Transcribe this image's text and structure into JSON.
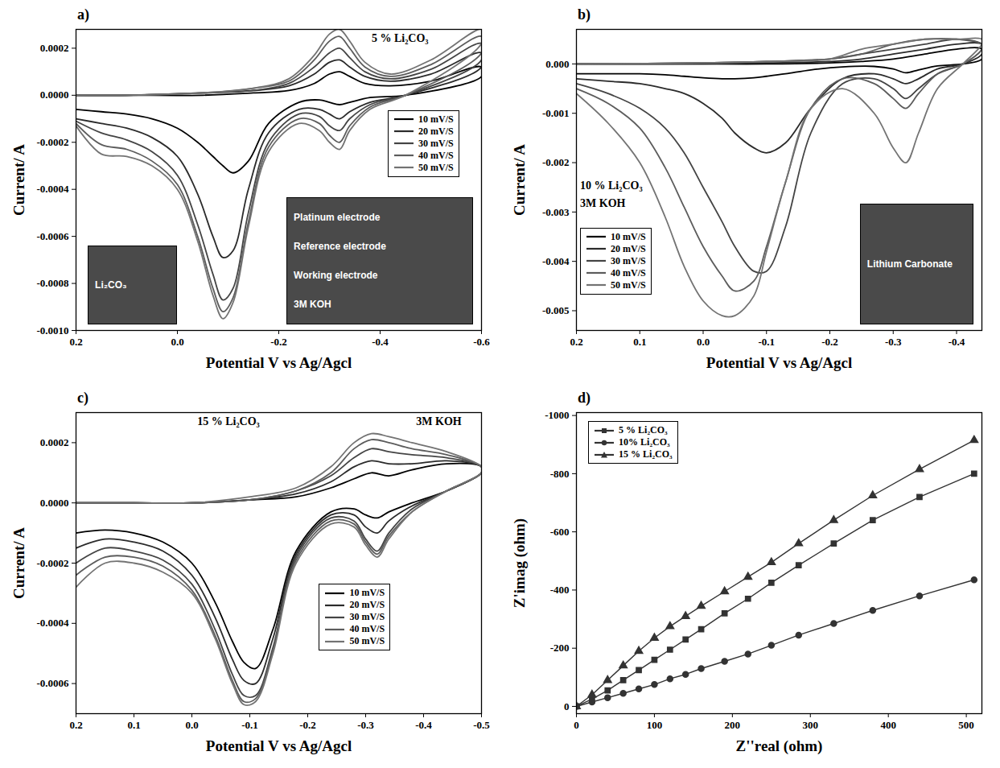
{
  "chart_data": [
    {
      "panel": "a)",
      "type": "line",
      "title": "5 % Li₂CO₃",
      "annotations": [
        "Li₂CO₃",
        "Platinum electrode",
        "Reference electrode",
        "Working electrode",
        "3M KOH"
      ],
      "x_label": "Potential V vs Ag/Agcl",
      "y_label": "Current/ A",
      "xlim": [
        0.2,
        -0.6
      ],
      "xticks": [
        0.2,
        {
          "value": 0,
          "label": "0.0"
        },
        -0.2,
        -0.4,
        -0.6
      ],
      "ylim": [
        -0.001,
        0.00028
      ],
      "yticks": [
        0.0002,
        {
          "value": 0,
          "label": "0.0000"
        },
        -0.0002,
        -0.0004,
        -0.0006,
        -0.0008,
        {
          "value": -0.001,
          "label": "-0.0010"
        }
      ],
      "legend": "right",
      "x": [
        0.2,
        0.15,
        0.1,
        0.05,
        0,
        -0.04,
        -0.07,
        -0.09,
        -0.11,
        -0.14,
        -0.18,
        -0.24,
        -0.28,
        -0.3,
        -0.32,
        -0.34,
        -0.38,
        -0.45,
        -0.6,
        -0.6,
        -0.5,
        -0.42,
        -0.37,
        -0.34,
        -0.32,
        -0.3,
        -0.27,
        -0.22,
        -0.15,
        -0.05,
        0.1,
        0.2
      ],
      "series": [
        {
          "name": "10 mV/S",
          "color": "#000000",
          "values": [
            -6e-05,
            -7e-05,
            -8e-05,
            -0.0001,
            -0.00014,
            -0.0002,
            -0.00026,
            -0.0003,
            -0.00033,
            -0.00028,
            -0.00012,
            -3e-05,
            -2e-05,
            -3e-05,
            -4e-05,
            -3e-05,
            -1e-05,
            0,
            8e-05,
            0.00012,
            6e-05,
            4e-05,
            5e-05,
            8e-05,
            0.0001,
            9e-05,
            5e-05,
            2e-05,
            1e-05,
            0,
            0,
            0
          ]
        },
        {
          "name": "20 mV/S",
          "color": "#2b2b2b",
          "values": [
            -0.0001,
            -0.00012,
            -0.00014,
            -0.00018,
            -0.00026,
            -0.00042,
            -0.0006,
            -0.00069,
            -0.00066,
            -0.0004,
            -0.00016,
            -6e-05,
            -6e-05,
            -8e-05,
            -0.0001,
            -7e-05,
            -3e-05,
            0,
            0.00012,
            0.00018,
            9e-05,
            6e-05,
            8e-05,
            0.00012,
            0.00015,
            0.00014,
            9e-05,
            4e-05,
            2e-05,
            1e-05,
            0,
            0
          ]
        },
        {
          "name": "30 mV/S",
          "color": "#444444",
          "values": [
            -0.00011,
            -0.00016,
            -0.00019,
            -0.00024,
            -0.00034,
            -0.00055,
            -0.00076,
            -0.00087,
            -0.00082,
            -0.0005,
            -0.0002,
            -8e-05,
            -9e-05,
            -0.00013,
            -0.00015,
            -0.0001,
            -4e-05,
            0,
            0.00015,
            0.00022,
            0.00011,
            7e-05,
            0.0001,
            0.00016,
            0.0002,
            0.00018,
            0.00012,
            5e-05,
            2e-05,
            1e-05,
            0,
            0
          ]
        },
        {
          "name": "40 mV/S",
          "color": "#5c5c5c",
          "values": [
            -0.00012,
            -0.00021,
            -0.00023,
            -0.00028,
            -0.00038,
            -0.0006,
            -0.00082,
            -0.00092,
            -0.00086,
            -0.00054,
            -0.00022,
            -0.0001,
            -0.00012,
            -0.00017,
            -0.0002,
            -0.00013,
            -5e-05,
            0,
            0.00018,
            0.00025,
            0.00013,
            8e-05,
            0.00012,
            0.0002,
            0.00025,
            0.00023,
            0.00015,
            6e-05,
            3e-05,
            1e-05,
            0,
            0
          ]
        },
        {
          "name": "50 mV/S",
          "color": "#737373",
          "values": [
            -0.00013,
            -0.00025,
            -0.00026,
            -0.0003,
            -0.0004,
            -0.00062,
            -0.00085,
            -0.00095,
            -0.00088,
            -0.00056,
            -0.00024,
            -0.00012,
            -0.00015,
            -0.0002,
            -0.00023,
            -0.00015,
            -6e-05,
            0,
            0.00022,
            0.00028,
            0.00015,
            9e-05,
            0.00014,
            0.00023,
            0.00028,
            0.00026,
            0.00017,
            7e-05,
            3e-05,
            1e-05,
            0,
            0
          ]
        }
      ]
    },
    {
      "panel": "b)",
      "type": "line",
      "title": "10 % Li₂CO₃",
      "annotations": [
        "3M KOH",
        "Lithium Carbonate"
      ],
      "x_label": "Potential V vs Ag/Agcl",
      "y_label": "Current/ A",
      "xlim": [
        0.2,
        -0.44
      ],
      "xticks": [
        0.2,
        0.1,
        {
          "value": 0,
          "label": "0.0"
        },
        -0.1,
        -0.2,
        -0.3,
        -0.4
      ],
      "ylim": [
        -0.0054,
        0.0007
      ],
      "yticks": [
        {
          "value": 0,
          "label": "0.000"
        },
        -0.001,
        -0.002,
        -0.003,
        -0.004,
        -0.005
      ],
      "legend": "lower left",
      "x": [
        0.2,
        0.15,
        0.1,
        0.06,
        0.03,
        0,
        -0.03,
        -0.05,
        -0.08,
        -0.1,
        -0.13,
        -0.17,
        -0.22,
        -0.27,
        -0.3,
        -0.32,
        -0.34,
        -0.37,
        -0.41,
        -0.44,
        -0.44,
        -0.4,
        -0.35,
        -0.3,
        -0.25,
        -0.2,
        -0.1,
        0,
        0.2
      ],
      "series": [
        {
          "name": "10 mV/S",
          "color": "#000000",
          "values": [
            -0.0002,
            -0.0002,
            -0.0002,
            -0.00022,
            -0.00025,
            -0.00028,
            -0.0003,
            -0.0003,
            -0.00028,
            -0.00025,
            -0.0002,
            -0.00012,
            -6e-05,
            -5e-05,
            -0.0001,
            -0.00018,
            -0.00012,
            -4e-05,
            0,
            0.0001,
            0.0003,
            0.0003,
            0.0002,
            0.0001,
            5e-05,
            2e-05,
            0,
            0,
            0
          ]
        },
        {
          "name": "20 mV/S",
          "color": "#2b2b2b",
          "values": [
            -0.0003,
            -0.00035,
            -0.0004,
            -0.0005,
            -0.0006,
            -0.0008,
            -0.0011,
            -0.0014,
            -0.0017,
            -0.0018,
            -0.0016,
            -0.0009,
            -0.0003,
            -0.0002,
            -0.0003,
            -0.0004,
            -0.0003,
            -0.0001,
            0,
            0.0002,
            0.0004,
            0.0004,
            0.0003,
            0.0002,
            0.0001,
            5e-05,
            2e-05,
            0,
            0
          ]
        },
        {
          "name": "30 mV/S",
          "color": "#444444",
          "values": [
            -0.0004,
            -0.0006,
            -0.0009,
            -0.0013,
            -0.0018,
            -0.0025,
            -0.0032,
            -0.0037,
            -0.0042,
            -0.0042,
            -0.0033,
            -0.0014,
            -0.0004,
            -0.0003,
            -0.0005,
            -0.0007,
            -0.0005,
            -0.0002,
            0,
            0.0003,
            0.0004,
            0.0005,
            0.0004,
            0.0003,
            0.0002,
            0.0001,
            5e-05,
            2e-05,
            0
          ]
        },
        {
          "name": "40 mV/S",
          "color": "#5c5c5c",
          "values": [
            -0.0005,
            -0.0008,
            -0.0013,
            -0.0021,
            -0.0029,
            -0.0037,
            -0.0043,
            -0.0046,
            -0.0044,
            -0.0037,
            -0.0024,
            -0.0009,
            -0.0003,
            -0.0004,
            -0.0007,
            -0.0009,
            -0.0006,
            -0.0002,
            0,
            0.0003,
            0.0004,
            0.0005,
            0.0005,
            0.0004,
            0.0002,
            0.0001,
            5e-05,
            2e-05,
            0
          ]
        },
        {
          "name": "50 mV/S",
          "color": "#737373",
          "values": [
            -0.0006,
            -0.0012,
            -0.002,
            -0.0031,
            -0.0041,
            -0.0048,
            -0.0051,
            -0.0051,
            -0.0047,
            -0.0038,
            -0.0024,
            -0.0009,
            -0.0005,
            -0.001,
            -0.0017,
            -0.002,
            -0.0014,
            -0.0005,
            0,
            0.0004,
            0.0005,
            0.0005,
            0.0005,
            0.0004,
            0.0003,
            0.0001,
            5e-05,
            2e-05,
            0
          ]
        }
      ]
    },
    {
      "panel": "c)",
      "type": "line",
      "title": "15 % Li₂CO₃",
      "annotations": [
        "3M KOH"
      ],
      "x_label": "Potential V vs Ag/Agcl",
      "y_label": "Current/ A",
      "xlim": [
        0.2,
        -0.5
      ],
      "xticks": [
        0.2,
        0.1,
        {
          "value": 0,
          "label": "0.0"
        },
        -0.1,
        -0.2,
        -0.3,
        -0.4,
        -0.5
      ],
      "ylim": [
        -0.0007,
        0.0003
      ],
      "yticks": [
        0.0002,
        {
          "value": 0,
          "label": "0.0000"
        },
        -0.0002,
        -0.0004,
        -0.0006
      ],
      "legend": "lower right",
      "x": [
        0.2,
        0.15,
        0.1,
        0.05,
        0,
        -0.04,
        -0.07,
        -0.09,
        -0.11,
        -0.14,
        -0.18,
        -0.24,
        -0.28,
        -0.3,
        -0.32,
        -0.34,
        -0.38,
        -0.44,
        -0.5,
        -0.5,
        -0.44,
        -0.38,
        -0.34,
        -0.31,
        -0.28,
        -0.24,
        -0.18,
        -0.1,
        0,
        0.1,
        0.2
      ],
      "series": [
        {
          "name": "10 mV/S",
          "color": "#000000",
          "values": [
            -0.0001,
            -9e-05,
            -0.0001,
            -0.00013,
            -0.0002,
            -0.00033,
            -0.00046,
            -0.00053,
            -0.00055,
            -0.00042,
            -0.00016,
            -3e-05,
            -2e-05,
            -4e-05,
            -5e-05,
            -3e-05,
            0,
            4e-05,
            0.0001,
            0.00012,
            0.00013,
            0.00011,
            9e-05,
            0.0001,
            8e-05,
            5e-05,
            2e-05,
            1e-05,
            0,
            0,
            0
          ]
        },
        {
          "name": "20 mV/S",
          "color": "#2b2b2b",
          "values": [
            -0.00015,
            -0.00012,
            -0.00013,
            -0.00016,
            -0.00024,
            -0.00038,
            -0.00052,
            -0.00059,
            -0.0006,
            -0.00045,
            -0.00017,
            -4e-05,
            -4e-05,
            -8e-05,
            -0.0001,
            -6e-05,
            -1e-05,
            4e-05,
            0.0001,
            0.00012,
            0.00014,
            0.00013,
            0.00013,
            0.00014,
            0.00012,
            7e-05,
            3e-05,
            1e-05,
            0,
            0,
            0
          ]
        },
        {
          "name": "30 mV/S",
          "color": "#444444",
          "values": [
            -0.0002,
            -0.00015,
            -0.00016,
            -0.00019,
            -0.00027,
            -0.00042,
            -0.00057,
            -0.00064,
            -0.00064,
            -0.00048,
            -0.00018,
            -5e-05,
            -6e-05,
            -0.00012,
            -0.00016,
            -0.0001,
            -2e-05,
            4e-05,
            0.0001,
            0.00012,
            0.00015,
            0.00016,
            0.00017,
            0.00018,
            0.00015,
            9e-05,
            4e-05,
            1e-05,
            0,
            0,
            0
          ]
        },
        {
          "name": "40 mV/S",
          "color": "#5c5c5c",
          "values": [
            -0.00024,
            -0.00018,
            -0.00018,
            -0.00021,
            -0.00029,
            -0.00044,
            -0.00059,
            -0.00066,
            -0.00065,
            -0.00049,
            -0.00019,
            -6e-05,
            -7e-05,
            -0.00013,
            -0.00017,
            -0.00011,
            -3e-05,
            4e-05,
            0.0001,
            0.00012,
            0.00016,
            0.00018,
            0.0002,
            0.00021,
            0.00018,
            0.0001,
            4e-05,
            1e-05,
            0,
            0,
            0
          ]
        },
        {
          "name": "50 mV/S",
          "color": "#737373",
          "values": [
            -0.00028,
            -0.0002,
            -0.0002,
            -0.00023,
            -0.0003,
            -0.00045,
            -0.0006,
            -0.00067,
            -0.00066,
            -0.0005,
            -0.0002,
            -7e-05,
            -8e-05,
            -0.00014,
            -0.00018,
            -0.00012,
            -3e-05,
            4e-05,
            0.0001,
            0.00012,
            0.00017,
            0.0002,
            0.00022,
            0.00023,
            0.0002,
            0.00012,
            5e-05,
            2e-05,
            0,
            0,
            0
          ]
        }
      ]
    },
    {
      "panel": "d)",
      "type": "line",
      "x_label": "Z''real (ohm)",
      "y_label": "Z'imag (ohm)",
      "xlim": [
        0,
        520
      ],
      "xticks": [
        0,
        100,
        200,
        300,
        400,
        500
      ],
      "ylim": [
        25,
        -1010
      ],
      "yticks": [
        0,
        -200,
        -400,
        -600,
        -800,
        -1000
      ],
      "legend": "upper left",
      "x": [
        0,
        20,
        40,
        60,
        80,
        100,
        120,
        140,
        160,
        190,
        220,
        250,
        285,
        330,
        380,
        440,
        510
      ],
      "series": [
        {
          "name": "5 % Li₂CO₃",
          "color": "#333333",
          "marker": "square",
          "values": [
            0,
            -25,
            -55,
            -90,
            -125,
            -160,
            -195,
            -230,
            -265,
            -320,
            -370,
            -425,
            -485,
            -560,
            -640,
            -720,
            -800
          ]
        },
        {
          "name": "10% Li₂CO₃",
          "color": "#333333",
          "marker": "circle",
          "values": [
            0,
            -15,
            -30,
            -45,
            -60,
            -75,
            -95,
            -110,
            -130,
            -155,
            -180,
            -210,
            -245,
            -285,
            -330,
            -380,
            -435
          ]
        },
        {
          "name": "15 % Li₂CO₃",
          "color": "#333333",
          "marker": "triangle",
          "values": [
            0,
            -40,
            -90,
            -140,
            -190,
            -235,
            -275,
            -310,
            -345,
            -395,
            -445,
            -495,
            -560,
            -640,
            -725,
            -815,
            -915
          ]
        }
      ]
    }
  ]
}
